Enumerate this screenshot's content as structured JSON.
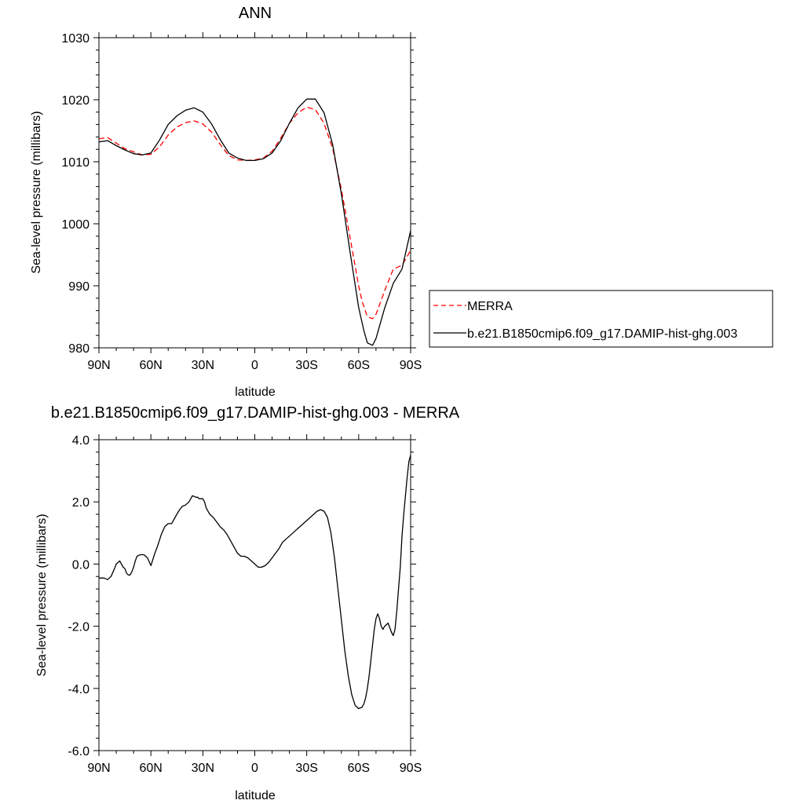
{
  "chart_data": [
    {
      "type": "line",
      "title": "ANN",
      "xlabel": "latitude",
      "ylabel": "Sea-level pressure (millibars)",
      "xlim": [
        90,
        -90
      ],
      "ylim": [
        980,
        1030
      ],
      "xticks": [
        90,
        60,
        30,
        0,
        -30,
        -60,
        -90
      ],
      "xtick_labels": [
        "90N",
        "60N",
        "30N",
        "0",
        "30S",
        "60S",
        "90S"
      ],
      "yticks": [
        980,
        990,
        1000,
        1010,
        1020,
        1030
      ],
      "ytick_labels": [
        "980",
        "990",
        "1000",
        "1010",
        "1020",
        "1030"
      ],
      "legend_position": "right",
      "series": [
        {
          "name": "MERRA",
          "color": "#ff0000",
          "dash": "dashed",
          "x": [
            90,
            85,
            80,
            75,
            70,
            65,
            60,
            55,
            50,
            45,
            40,
            35,
            30,
            25,
            20,
            15,
            10,
            5,
            0,
            -5,
            -10,
            -15,
            -20,
            -25,
            -30,
            -35,
            -40,
            -45,
            -50,
            -55,
            -60,
            -62,
            -65,
            -68,
            -70,
            -75,
            -80,
            -85,
            -90
          ],
          "values": [
            1013.7,
            1013.9,
            1013.0,
            1012.1,
            1011.6,
            1011.1,
            1011.2,
            1012.4,
            1014.3,
            1015.6,
            1016.3,
            1016.6,
            1016.1,
            1014.8,
            1012.8,
            1011.0,
            1010.3,
            1010.2,
            1010.3,
            1010.6,
            1011.7,
            1013.8,
            1016.2,
            1017.9,
            1018.8,
            1018.4,
            1016.2,
            1012.1,
            1005.5,
            997.8,
            990.0,
            987.5,
            985.0,
            984.7,
            985.4,
            989.2,
            992.7,
            993.3,
            995.7
          ]
        },
        {
          "name": "b.e21.B1850cmip6.f09_g17.DAMIP-hist-ghg.003",
          "color": "#000000",
          "dash": "solid",
          "x": [
            90,
            85,
            80,
            75,
            70,
            65,
            60,
            55,
            50,
            45,
            40,
            35,
            30,
            25,
            20,
            15,
            10,
            5,
            0,
            -5,
            -10,
            -15,
            -20,
            -25,
            -30,
            -35,
            -40,
            -45,
            -50,
            -55,
            -60,
            -63,
            -65,
            -68,
            -70,
            -75,
            -80,
            -85,
            -90
          ],
          "values": [
            1013.2,
            1013.4,
            1012.6,
            1011.9,
            1011.3,
            1011.1,
            1011.4,
            1013.5,
            1016.0,
            1017.4,
            1018.3,
            1018.7,
            1018.0,
            1016.1,
            1013.6,
            1011.4,
            1010.6,
            1010.2,
            1010.2,
            1010.5,
            1011.4,
            1013.4,
            1016.2,
            1018.7,
            1020.1,
            1020.1,
            1017.9,
            1012.7,
            1004.8,
            995.5,
            986.5,
            982.8,
            980.8,
            980.4,
            981.5,
            986.4,
            990.4,
            992.7,
            998.9
          ]
        }
      ]
    },
    {
      "type": "line",
      "title": "b.e21.B1850cmip6.f09_g17.DAMIP-hist-ghg.003 - MERRA",
      "xlabel": "latitude",
      "ylabel": "Sea-level pressure (millibars)",
      "xlim": [
        90,
        -90
      ],
      "ylim": [
        -6,
        4
      ],
      "xticks": [
        90,
        60,
        30,
        0,
        -30,
        -60,
        -90
      ],
      "xtick_labels": [
        "90N",
        "60N",
        "30N",
        "0",
        "30S",
        "60S",
        "90S"
      ],
      "yticks": [
        -6,
        -4,
        -2,
        0,
        2,
        4
      ],
      "ytick_labels": [
        "-6.0",
        "-4.0",
        "-2.0",
        "0.0",
        "2.0",
        "4.0"
      ],
      "series": [
        {
          "color": "#000000",
          "dash": "solid",
          "x": [
            90,
            87,
            85,
            83,
            81,
            80,
            79,
            78,
            77,
            76,
            75,
            74,
            73,
            72,
            71,
            70,
            69,
            68,
            67,
            66,
            65,
            64,
            62,
            60,
            58,
            56,
            54,
            52,
            50,
            48,
            46,
            44,
            42,
            40,
            38,
            36,
            34,
            33,
            32,
            31,
            30,
            29,
            28,
            27,
            26,
            25,
            24,
            22,
            20,
            18,
            16,
            15,
            14,
            12,
            10,
            8,
            6,
            4,
            2,
            0,
            -2,
            -4,
            -6,
            -8,
            -10,
            -12,
            -14,
            -16,
            -18,
            -20,
            -22,
            -24,
            -26,
            -28,
            -30,
            -32,
            -34,
            -36,
            -38,
            -40,
            -42,
            -44,
            -46,
            -48,
            -50,
            -52,
            -54,
            -56,
            -58,
            -60,
            -62,
            -63,
            -64,
            -65,
            -66,
            -67,
            -68,
            -69,
            -70,
            -71,
            -72,
            -73,
            -74,
            -75,
            -76,
            -77,
            -78,
            -79,
            -80,
            -81,
            -82,
            -83,
            -84,
            -85,
            -86,
            -87,
            -88,
            -89,
            -90
          ],
          "values": [
            -0.45,
            -0.45,
            -0.5,
            -0.4,
            -0.15,
            0.0,
            0.05,
            0.1,
            0.0,
            -0.1,
            -0.15,
            -0.3,
            -0.35,
            -0.35,
            -0.25,
            -0.1,
            0.1,
            0.25,
            0.28,
            0.3,
            0.3,
            0.3,
            0.2,
            -0.05,
            0.3,
            0.6,
            0.95,
            1.2,
            1.3,
            1.3,
            1.5,
            1.7,
            1.85,
            1.9,
            2.0,
            2.2,
            2.15,
            2.15,
            2.1,
            2.1,
            2.1,
            2.0,
            1.8,
            1.7,
            1.6,
            1.55,
            1.5,
            1.35,
            1.2,
            1.1,
            0.95,
            0.85,
            0.75,
            0.55,
            0.35,
            0.25,
            0.25,
            0.2,
            0.1,
            0.0,
            -0.1,
            -0.1,
            -0.05,
            0.05,
            0.2,
            0.35,
            0.5,
            0.7,
            0.8,
            0.9,
            1.0,
            1.1,
            1.2,
            1.3,
            1.4,
            1.5,
            1.6,
            1.7,
            1.75,
            1.7,
            1.5,
            1.0,
            0.2,
            -0.8,
            -1.8,
            -2.8,
            -3.6,
            -4.2,
            -4.55,
            -4.65,
            -4.6,
            -4.5,
            -4.3,
            -4.0,
            -3.6,
            -3.1,
            -2.6,
            -2.1,
            -1.75,
            -1.6,
            -1.75,
            -2.0,
            -2.1,
            -2.0,
            -1.95,
            -1.9,
            -2.05,
            -2.2,
            -2.3,
            -2.1,
            -1.5,
            -0.8,
            -0.1,
            0.9,
            1.6,
            2.2,
            2.8,
            3.3,
            3.5
          ]
        }
      ]
    }
  ],
  "legend_entries": [
    "MERRA",
    "b.e21.B1850cmip6.f09_g17.DAMIP-hist-ghg.003"
  ]
}
